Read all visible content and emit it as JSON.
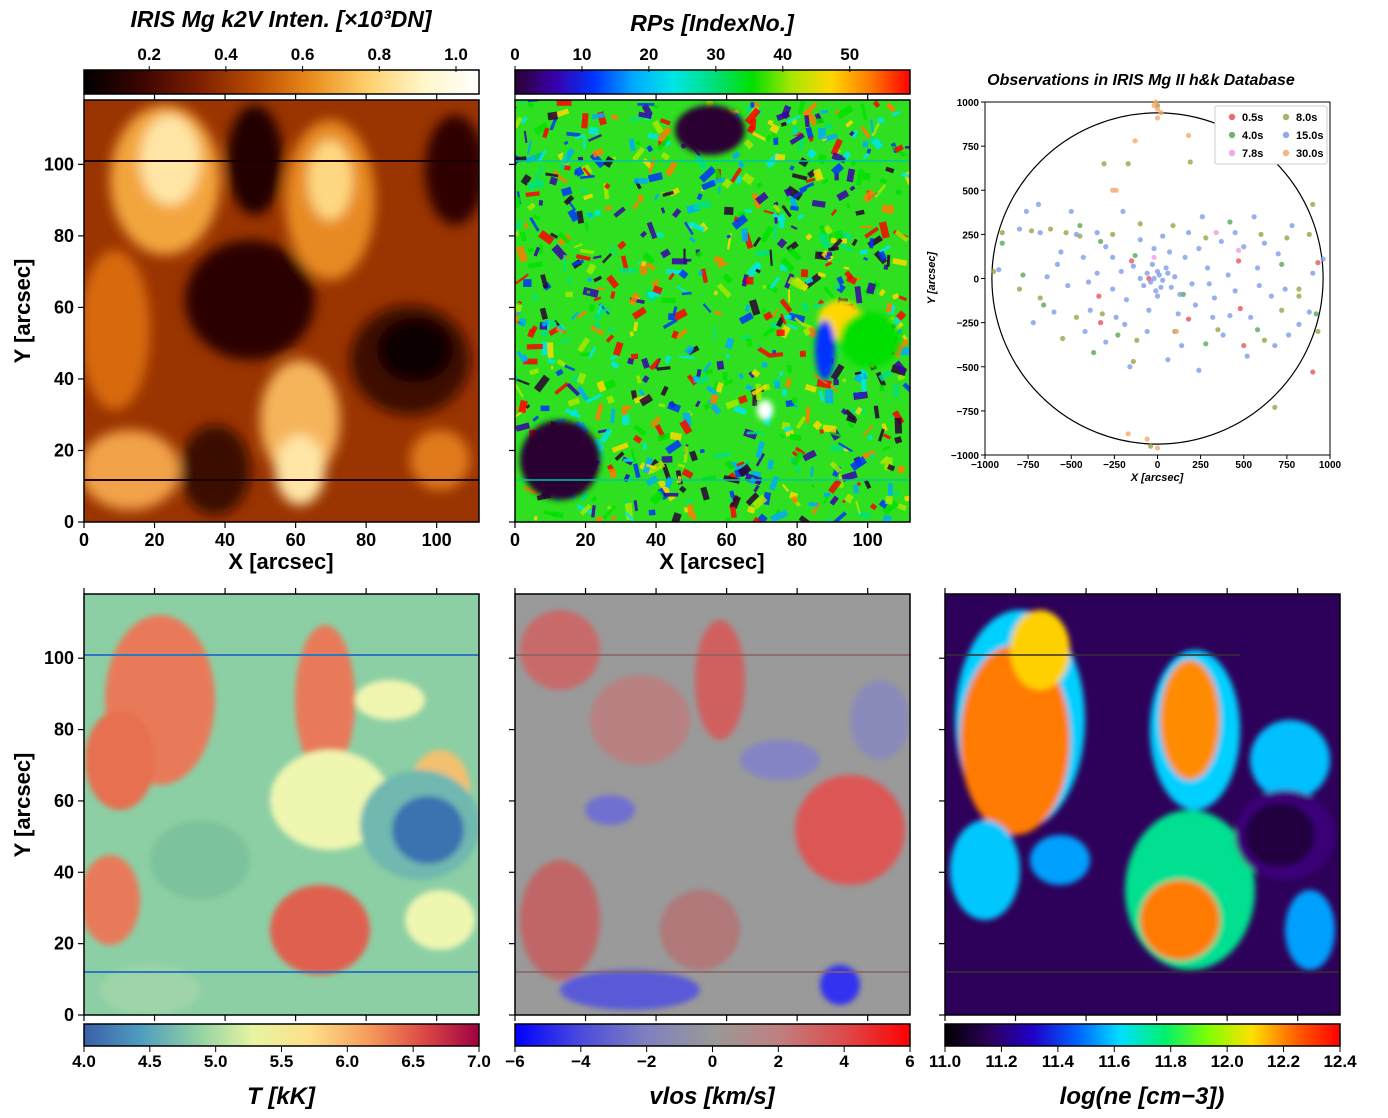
{
  "panels": {
    "intensity": {
      "title": "IRIS Mg k2V Inten. [×10³DN]",
      "colorbar_ticks": [
        "0.2",
        "0.4",
        "0.6",
        "0.8",
        "1.0"
      ],
      "colormap": [
        "#000000",
        "#3a0500",
        "#7a1e00",
        "#b84a00",
        "#e98a1a",
        "#ffce6a",
        "#fff6c8",
        "#ffffff"
      ]
    },
    "rps": {
      "title": "RPs [IndexNo.]",
      "colorbar_ticks": [
        "0",
        "10",
        "20",
        "30",
        "40",
        "50"
      ],
      "colormap": [
        "#2a0033",
        "#3a00aa",
        "#0033ff",
        "#00aaff",
        "#00e6e6",
        "#00e080",
        "#00e000",
        "#a8e600",
        "#ffd700",
        "#ff7a00",
        "#ff0000"
      ]
    },
    "database": {
      "title": "Observations in IRIS Mg II h&k Database",
      "xlabel": "X [arcsec]",
      "ylabel": "Y [arcsec]",
      "xticks": [
        "−1000",
        "−750",
        "−500",
        "−250",
        "0",
        "250",
        "500",
        "750",
        "1000"
      ],
      "yticks": [
        "1000",
        "750",
        "500",
        "250",
        "0",
        "−250",
        "−500",
        "−750",
        "−1000"
      ]
    },
    "temperature": {
      "label": "T [kK]",
      "colorbar_ticks": [
        "4.0",
        "4.5",
        "5.0",
        "5.5",
        "6.0",
        "6.5",
        "7.0"
      ],
      "colormap": [
        "#3b5fa8",
        "#4f9cc0",
        "#8fd0a4",
        "#e8f4a2",
        "#fde08a",
        "#f6a05c",
        "#dd4a46",
        "#a00040"
      ]
    },
    "velocity": {
      "label": "vlos [km/s]",
      "colorbar_ticks": [
        "−6",
        "−4",
        "−2",
        "0",
        "2",
        "4",
        "6"
      ],
      "colormap": [
        "#0000ff",
        "#4b4bdc",
        "#8080c0",
        "#999999",
        "#c08080",
        "#dc4b4b",
        "#ff0000"
      ]
    },
    "density": {
      "label": "log(ne [cm−3])",
      "colorbar_ticks": [
        "11.0",
        "11.2",
        "11.4",
        "11.6",
        "11.8",
        "12.0",
        "12.2",
        "12.4"
      ],
      "colormap": [
        "#000000",
        "#2d005a",
        "#2000c8",
        "#0060ff",
        "#00e0ff",
        "#00f070",
        "#80ff00",
        "#ffe000",
        "#ff6000",
        "#ff0000"
      ]
    }
  },
  "image_axes": {
    "xlabel": "X [arcsec]",
    "ylabel": "Y [arcsec]",
    "xticks": [
      "0",
      "20",
      "40",
      "60",
      "80",
      "100"
    ],
    "yticks": [
      "0",
      "20",
      "40",
      "60",
      "80",
      "100"
    ],
    "xlim": [
      0,
      112
    ],
    "ylim": [
      0,
      118
    ]
  },
  "chart_data": {
    "type": "scatter",
    "title": "Observations in IRIS Mg II h&k Database",
    "xlabel": "X [arcsec]",
    "ylabel": "Y [arcsec]",
    "xlim": [
      -1000,
      1000
    ],
    "ylim": [
      -1000,
      1000
    ],
    "solar_limb_radius": 960,
    "legend_position": "top-right",
    "series": [
      {
        "name": "0.5s",
        "color": "#e8525a",
        "points": [
          [
            -150,
            100
          ],
          [
            470,
            100
          ],
          [
            -330,
            -250
          ],
          [
            500,
            -380
          ],
          [
            930,
            90
          ],
          [
            -50,
            0
          ],
          [
            180,
            -230
          ],
          [
            -340,
            -100
          ],
          [
            480,
            -170
          ],
          [
            900,
            -530
          ]
        ]
      },
      {
        "name": "4.0s",
        "color": "#58a858",
        "points": [
          [
            -780,
            20
          ],
          [
            -370,
            -420
          ],
          [
            -660,
            -150
          ],
          [
            150,
            -90
          ],
          [
            -130,
            130
          ],
          [
            720,
            80
          ],
          [
            -330,
            210
          ],
          [
            420,
            320
          ],
          [
            580,
            -290
          ],
          [
            920,
            -200
          ],
          [
            -900,
            200
          ],
          [
            -450,
            300
          ],
          [
            280,
            -370
          ],
          [
            -230,
            -320
          ]
        ]
      },
      {
        "name": "7.8s",
        "color": "#f29ae0",
        "points": [
          [
            470,
            160
          ],
          [
            -20,
            120
          ],
          [
            340,
            260
          ]
        ]
      },
      {
        "name": "8.0s",
        "color": "#9aa44a",
        "points": [
          [
            -950,
            40
          ],
          [
            -900,
            260
          ],
          [
            -730,
            270
          ],
          [
            -620,
            280
          ],
          [
            -530,
            260
          ],
          [
            -450,
            240
          ],
          [
            -260,
            250
          ],
          [
            -100,
            310
          ],
          [
            90,
            300
          ],
          [
            280,
            230
          ],
          [
            600,
            250
          ],
          [
            750,
            230
          ],
          [
            880,
            250
          ],
          [
            900,
            420
          ],
          [
            -800,
            -60
          ],
          [
            -680,
            -110
          ],
          [
            -470,
            -220
          ],
          [
            -550,
            -340
          ],
          [
            -320,
            -200
          ],
          [
            -120,
            -350
          ],
          [
            100,
            -300
          ],
          [
            350,
            -290
          ],
          [
            620,
            -350
          ],
          [
            720,
            -180
          ],
          [
            820,
            -60
          ],
          [
            930,
            -300
          ],
          [
            -170,
            650
          ],
          [
            -310,
            650
          ],
          [
            190,
            660
          ],
          [
            0,
            980
          ],
          [
            680,
            -730
          ],
          [
            -40,
            -950
          ],
          [
            820,
            -100
          ],
          [
            -140,
            -470
          ]
        ]
      },
      {
        "name": "15.0s",
        "color": "#7e9ce6",
        "points": [
          [
            -20,
            0
          ],
          [
            10,
            20
          ],
          [
            -40,
            -20
          ],
          [
            30,
            -10
          ],
          [
            0,
            40
          ],
          [
            -60,
            30
          ],
          [
            60,
            30
          ],
          [
            20,
            -50
          ],
          [
            -10,
            -70
          ],
          [
            50,
            60
          ],
          [
            -80,
            -40
          ],
          [
            80,
            -50
          ],
          [
            -30,
            80
          ],
          [
            100,
            10
          ],
          [
            -100,
            0
          ],
          [
            0,
            -100
          ],
          [
            130,
            -90
          ],
          [
            -140,
            70
          ],
          [
            160,
            120
          ],
          [
            -180,
            -120
          ],
          [
            200,
            -30
          ],
          [
            -210,
            40
          ],
          [
            240,
            170
          ],
          [
            -260,
            -60
          ],
          [
            290,
            60
          ],
          [
            -300,
            180
          ],
          [
            330,
            -110
          ],
          [
            -350,
            30
          ],
          [
            370,
            210
          ],
          [
            -390,
            -180
          ],
          [
            410,
            20
          ],
          [
            -430,
            120
          ],
          [
            450,
            -70
          ],
          [
            -470,
            250
          ],
          [
            500,
            180
          ],
          [
            -520,
            -40
          ],
          [
            540,
            -220
          ],
          [
            -560,
            150
          ],
          [
            580,
            60
          ],
          [
            -600,
            -190
          ],
          [
            620,
            200
          ],
          [
            -640,
            10
          ],
          [
            660,
            -100
          ],
          [
            -680,
            260
          ],
          [
            700,
            140
          ],
          [
            -720,
            -250
          ],
          [
            740,
            -60
          ],
          [
            -760,
            380
          ],
          [
            780,
            300
          ],
          [
            -800,
            280
          ],
          [
            820,
            -260
          ],
          [
            -200,
            380
          ],
          [
            260,
            350
          ],
          [
            -60,
            -300
          ],
          [
            140,
            -380
          ],
          [
            -300,
            -360
          ],
          [
            380,
            -320
          ],
          [
            60,
            -460
          ],
          [
            -160,
            -500
          ],
          [
            240,
            -520
          ],
          [
            -420,
            -300
          ],
          [
            520,
            -440
          ],
          [
            900,
            30
          ],
          [
            880,
            -190
          ],
          [
            -920,
            50
          ],
          [
            960,
            110
          ],
          [
            30,
            240
          ],
          [
            -100,
            220
          ],
          [
            120,
            -200
          ],
          [
            -240,
            -220
          ],
          [
            320,
            -220
          ],
          [
            -350,
            260
          ],
          [
            450,
            260
          ],
          [
            -500,
            380
          ],
          [
            680,
            -380
          ],
          [
            -690,
            420
          ],
          [
            300,
            -30
          ],
          [
            -20,
            170
          ],
          [
            -50,
            -180
          ],
          [
            220,
            -150
          ],
          [
            420,
            -210
          ],
          [
            -580,
            80
          ],
          [
            760,
            -320
          ],
          [
            560,
            350
          ],
          [
            -260,
            120
          ],
          [
            180,
            260
          ],
          [
            -400,
            -20
          ],
          [
            590,
            -40
          ],
          [
            -190,
            -260
          ],
          [
            70,
            150
          ]
        ]
      },
      {
        "name": "30.0s",
        "color": "#f6a86a",
        "points": [
          [
            -20,
            980
          ],
          [
            0,
            960
          ],
          [
            20,
            940
          ],
          [
            -10,
            1000
          ],
          [
            0,
            910
          ],
          [
            -240,
            500
          ],
          [
            180,
            810
          ],
          [
            -130,
            780
          ],
          [
            -60,
            -910
          ],
          [
            0,
            -960
          ],
          [
            -170,
            -880
          ],
          [
            110,
            -300
          ],
          [
            -260,
            500
          ]
        ]
      }
    ]
  }
}
